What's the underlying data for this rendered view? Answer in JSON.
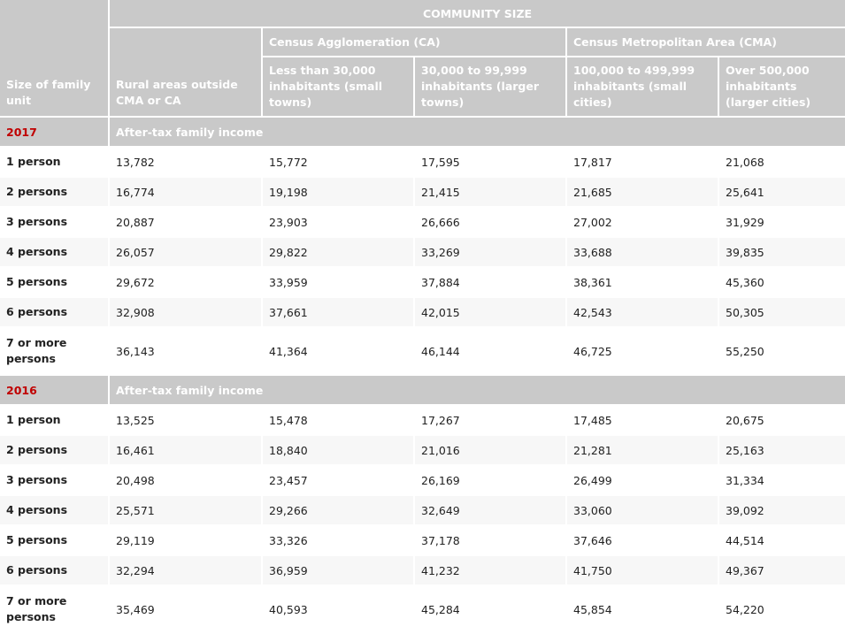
{
  "header": {
    "community_size": "COMMUNITY SIZE",
    "ca_group": "Census Agglomeration (CA)",
    "cma_group": "Census Metropolitan Area (CMA)",
    "size_of_family_unit": "Size of family unit",
    "rural": "Rural areas outside CMA or CA",
    "ca_small": "Less than 30,000 inhabitants (small towns)",
    "ca_large": "30,000 to 99,999 inhabitants (larger towns)",
    "cma_small": "100,000 to 499,999 inhabitants (small cities)",
    "cma_large": "Over 500,000 inhabitants (larger cities)"
  },
  "sections": [
    {
      "year": "2017",
      "label": "After-tax family income",
      "rows": [
        {
          "size": "1 person",
          "values": [
            "13,782",
            "15,772",
            "17,595",
            "17,817",
            "21,068"
          ]
        },
        {
          "size": "2 persons",
          "values": [
            "16,774",
            "19,198",
            "21,415",
            "21,685",
            "25,641"
          ]
        },
        {
          "size": "3 persons",
          "values": [
            "20,887",
            "23,903",
            "26,666",
            "27,002",
            "31,929"
          ]
        },
        {
          "size": "4 persons",
          "values": [
            "26,057",
            "29,822",
            "33,269",
            "33,688",
            "39,835"
          ]
        },
        {
          "size": "5 persons",
          "values": [
            "29,672",
            "33,959",
            "37,884",
            "38,361",
            "45,360"
          ]
        },
        {
          "size": "6 persons",
          "values": [
            "32,908",
            "37,661",
            "42,015",
            "42,543",
            "50,305"
          ]
        },
        {
          "size": "7 or more persons",
          "values": [
            "36,143",
            "41,364",
            "46,144",
            "46,725",
            "55,250"
          ]
        }
      ]
    },
    {
      "year": "2016",
      "label": "After-tax family income",
      "rows": [
        {
          "size": "1 person",
          "values": [
            "13,525",
            "15,478",
            "17,267",
            "17,485",
            "20,675"
          ]
        },
        {
          "size": "2 persons",
          "values": [
            "16,461",
            "18,840",
            "21,016",
            "21,281",
            "25,163"
          ]
        },
        {
          "size": "3 persons",
          "values": [
            "20,498",
            "23,457",
            "26,169",
            "26,499",
            "31,334"
          ]
        },
        {
          "size": "4 persons",
          "values": [
            "25,571",
            "29,266",
            "32,649",
            "33,060",
            "39,092"
          ]
        },
        {
          "size": "5 persons",
          "values": [
            "29,119",
            "33,326",
            "37,178",
            "37,646",
            "44,514"
          ]
        },
        {
          "size": "6 persons",
          "values": [
            "32,294",
            "36,959",
            "41,232",
            "41,750",
            "49,367"
          ]
        },
        {
          "size": "7 or more persons",
          "values": [
            "35,469",
            "40,593",
            "45,284",
            "45,854",
            "54,220"
          ]
        }
      ]
    }
  ]
}
